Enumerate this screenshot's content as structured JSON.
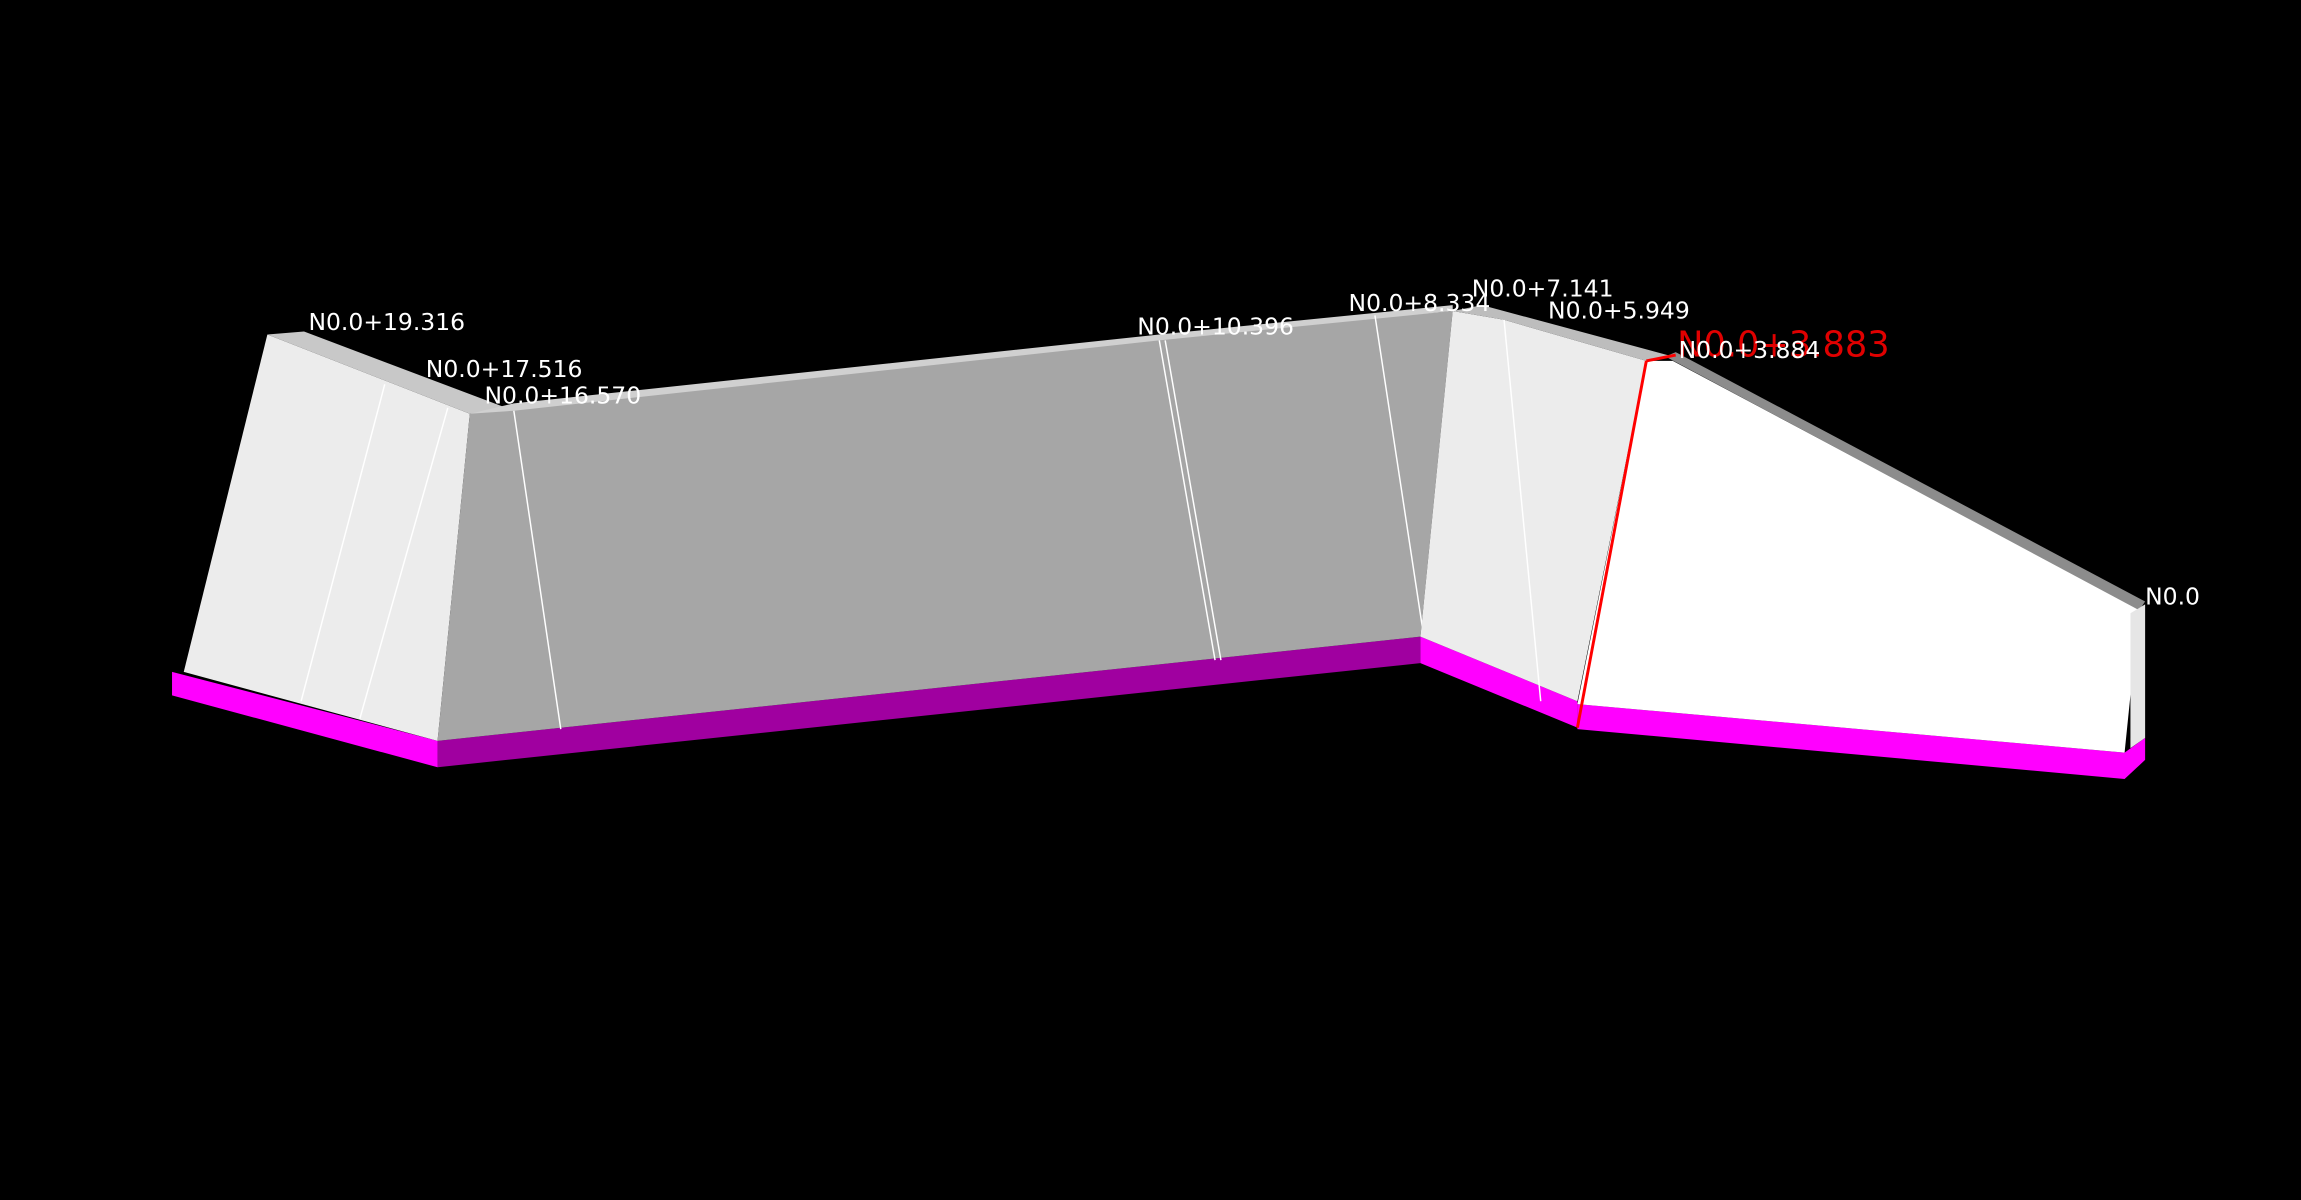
{
  "labels": {
    "station_19316": "N0.0+19.316",
    "station_17516": "N0.0+17.516",
    "station_16570": "N0.0+16.570",
    "station_10396": "N0.0+10.396",
    "station_8334": "N0.0+8.334",
    "station_7141": "N0.0+7.141",
    "station_5949": "N0.0+5.949",
    "station_3884": "N0.0+3.884",
    "station_3883_selected": "N0.0+3.883",
    "station_0": "N0.0"
  }
}
